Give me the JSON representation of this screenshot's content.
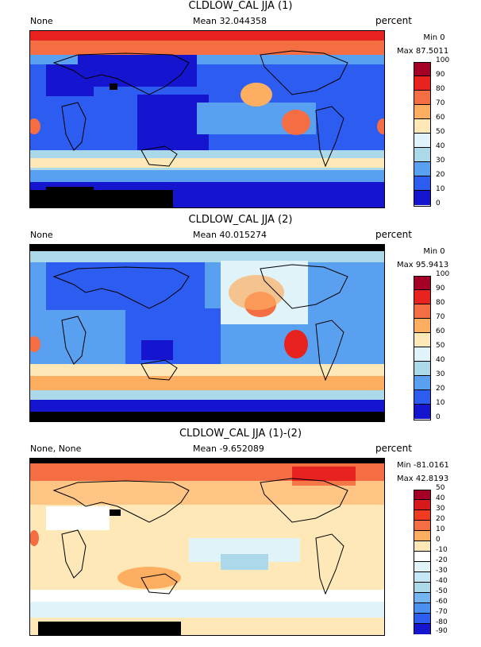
{
  "panels": [
    {
      "title": "CLDLOW_CAL JJA (1)",
      "left_label": "None",
      "mean": "Mean 32.044358",
      "units": "percent",
      "min": "Min 0",
      "max": "Max 87.5011",
      "colorbar": {
        "labels": [
          "100",
          "90",
          "80",
          "70",
          "60",
          "50",
          "40",
          "30",
          "20",
          "10",
          "0"
        ],
        "colors": [
          "#a50026",
          "#e8231f",
          "#f46d43",
          "#fdae61",
          "#fee8b8",
          "#e0f3f8",
          "#abd9e9",
          "#5aa0f0",
          "#2c5cf0",
          "#1515d0"
        ]
      }
    },
    {
      "title": "CLDLOW_CAL JJA (2)",
      "left_label": "None",
      "mean": "Mean 40.015274",
      "units": "percent",
      "min": "Min 0",
      "max": "Max 95.9413",
      "colorbar": {
        "labels": [
          "100",
          "90",
          "80",
          "70",
          "60",
          "50",
          "40",
          "30",
          "20",
          "10",
          "0"
        ],
        "colors": [
          "#a50026",
          "#e8231f",
          "#f46d43",
          "#fdae61",
          "#fee8b8",
          "#e0f3f8",
          "#abd9e9",
          "#5aa0f0",
          "#2c5cf0",
          "#1515d0"
        ]
      }
    },
    {
      "title": "CLDLOW_CAL JJA (1)-(2)",
      "left_label": "None, None",
      "mean": "Mean -9.652089",
      "units": "percent",
      "min": "Min -81.0161",
      "max": "Max 42.8193",
      "colorbar": {
        "labels": [
          "50",
          "40",
          "30",
          "20",
          "10",
          "0",
          "-10",
          "-20",
          "-30",
          "-40",
          "-50",
          "-60",
          "-70",
          "-80",
          "-90"
        ],
        "colors": [
          "#a50026",
          "#d7191c",
          "#f03b20",
          "#f46d43",
          "#fdae61",
          "#fee8b8",
          "#ffffff",
          "#e0f3f8",
          "#c6e7f5",
          "#abd9e9",
          "#74b4f0",
          "#4a90f0",
          "#2c5cf0",
          "#1515d0"
        ]
      }
    }
  ]
}
